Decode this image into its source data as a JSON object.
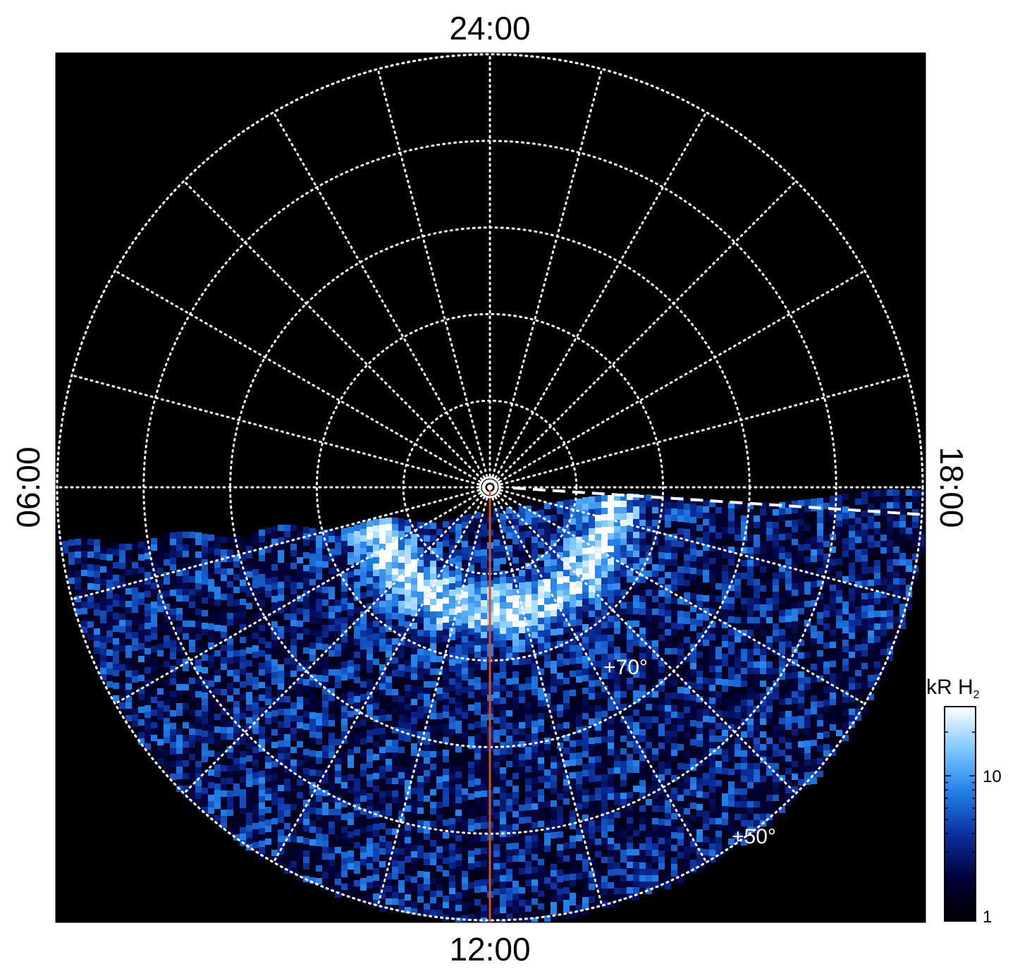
{
  "chart_data": {
    "type": "heatmap",
    "projection": "polar",
    "title": "",
    "local_time_labels": {
      "top": "24:00",
      "bottom": "12:00",
      "left": "06:00",
      "right": "18:00"
    },
    "latitude_circles_deg": [
      80,
      70,
      60,
      50,
      40
    ],
    "latitude_labels": [
      "+70°",
      "+50°"
    ],
    "meridian_spacing_hours": 1,
    "grid": true,
    "grid_style": "dotted white",
    "background_color": "#000000",
    "terminator_line": {
      "style": "dashed white"
    },
    "meridian_highlight": {
      "local_time": "12:00",
      "color": "#d4501c"
    },
    "colorbar": {
      "label": "kR H",
      "label_subscript": "2",
      "scale": "log",
      "range": [
        1,
        30
      ],
      "ticks": [
        1,
        10
      ],
      "tick_labels": [
        "1",
        "10"
      ],
      "colors": [
        "#000000",
        "#00003a",
        "#0a2f9e",
        "#1f7fe8",
        "#7cc8ff",
        "#ffffff"
      ]
    }
  }
}
